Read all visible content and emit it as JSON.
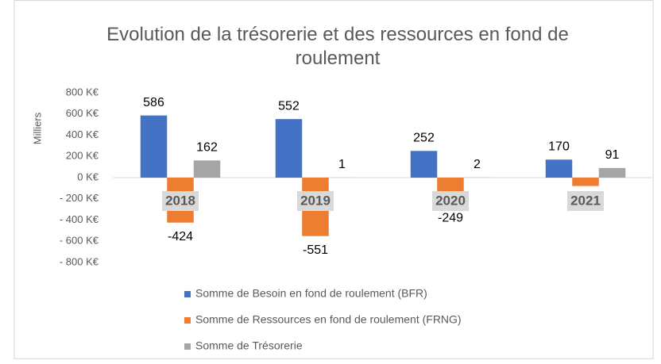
{
  "chart_data": {
    "type": "bar",
    "title": "Evolution de la trésorerie et des ressources en fond de roulement",
    "ylabel": "Milliers",
    "categories": [
      "2018",
      "2019",
      "2020",
      "2021"
    ],
    "series": [
      {
        "name": "Somme de Besoin en fond de roulement (BFR)",
        "color": "#4472c4",
        "values": [
          586,
          552,
          252,
          170
        ]
      },
      {
        "name": "Somme de Ressources en fond de roulement (FRNG)",
        "color": "#ed7d31",
        "values": [
          -424,
          -551,
          -249,
          -79
        ]
      },
      {
        "name": "Somme de Trésorerie",
        "color": "#a5a5a5",
        "values": [
          162,
          1,
          2,
          91
        ]
      }
    ],
    "ylim": [
      -800,
      800
    ],
    "yticks": [
      {
        "value": 800,
        "label": "800 K€"
      },
      {
        "value": 600,
        "label": "600 K€"
      },
      {
        "value": 400,
        "label": "400 K€"
      },
      {
        "value": 200,
        "label": "200 K€"
      },
      {
        "value": 0,
        "label": "0 K€"
      },
      {
        "value": -200,
        "label": "- 200 K€"
      },
      {
        "value": -400,
        "label": "- 400 K€"
      },
      {
        "value": -600,
        "label": "- 600 K€"
      },
      {
        "value": -800,
        "label": "- 800 K€"
      }
    ],
    "grid": false,
    "legend": "bottom"
  }
}
